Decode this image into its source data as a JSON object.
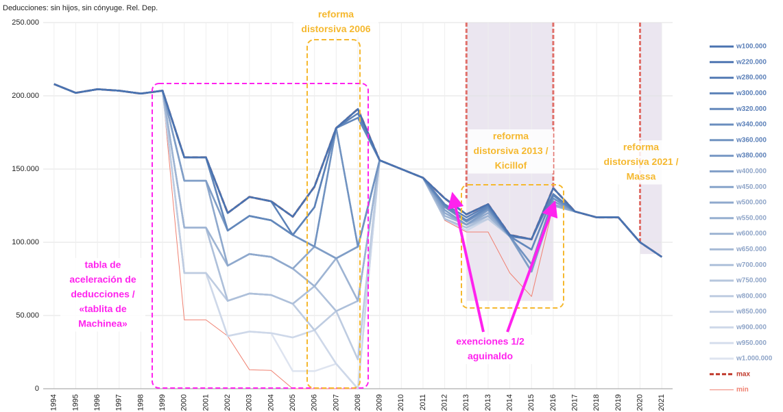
{
  "chart_data": {
    "type": "line",
    "title": "Deducciones: sin hijos, sin cónyuge. Rel. Dep.",
    "categories": [
      "1994",
      "1995",
      "1996",
      "1997",
      "1998",
      "1999",
      "2000",
      "2001",
      "2002",
      "2003",
      "2004",
      "2005",
      "2006",
      "2007",
      "2008",
      "2009",
      "2010",
      "2011",
      "2012",
      "2013",
      "2013",
      "2014",
      "2015",
      "2016",
      "2017",
      "2018",
      "2019",
      "2020",
      "2021"
    ],
    "ylim": [
      0,
      250000
    ],
    "yticks": [
      0,
      {
        "value": 50000,
        "label": "50.000"
      },
      {
        "value": 100000,
        "label": "100.000"
      },
      {
        "value": 150000,
        "label": "150.000"
      },
      {
        "value": 200000,
        "label": "200.000"
      },
      {
        "value": 250000,
        "label": "250.000"
      }
    ],
    "grid": true,
    "legend": "right",
    "series": [
      {
        "name": "w100.000",
        "color": "#4a73b0",
        "values": [
          208000,
          202000,
          204500,
          203500,
          201500,
          203500,
          158000,
          158000,
          120000,
          131000,
          128000,
          117500,
          138000,
          178000,
          191000,
          156000,
          150000,
          144000,
          130000,
          119000,
          126000,
          105000,
          102000,
          137000,
          121000,
          117000,
          117000,
          100000,
          90000
        ]
      },
      {
        "name": "w220.000",
        "color": "#4e76b2",
        "values": [
          208000,
          202000,
          204500,
          203500,
          201500,
          203500,
          158000,
          158000,
          120000,
          131000,
          128000,
          117500,
          138000,
          178000,
          191000,
          156000,
          150000,
          144000,
          130000,
          119000,
          126000,
          105000,
          102000,
          137000,
          121000,
          117000,
          117000,
          100000,
          90000
        ]
      },
      {
        "name": "w280.000",
        "color": "#557cb5",
        "values": [
          208000,
          202000,
          204500,
          203500,
          201500,
          203500,
          158000,
          158000,
          120000,
          131000,
          128000,
          117500,
          138000,
          178000,
          191000,
          156000,
          150000,
          144000,
          130000,
          119000,
          126000,
          105000,
          102000,
          137000,
          121000,
          117000,
          117000,
          100000,
          90000
        ]
      },
      {
        "name": "w300.000",
        "color": "#5c82b8",
        "values": [
          208000,
          202000,
          204500,
          203500,
          201500,
          203500,
          158000,
          158000,
          120000,
          131000,
          128000,
          105000,
          124000,
          178000,
          188000,
          156000,
          150000,
          144000,
          126000,
          117000,
          125000,
          104000,
          102000,
          133000,
          121000,
          117000,
          117000,
          100000,
          90000
        ]
      },
      {
        "name": "w320.000",
        "color": "#6388bb",
        "values": [
          208000,
          202000,
          204500,
          203500,
          201500,
          203500,
          158000,
          158000,
          108000,
          118000,
          115000,
          105000,
          124000,
          178000,
          185000,
          156000,
          150000,
          144000,
          125000,
          115000,
          124000,
          104000,
          95000,
          132000,
          121000,
          117000,
          117000,
          100000,
          90000
        ]
      },
      {
        "name": "w340.000",
        "color": "#6a8dbe",
        "values": [
          208000,
          202000,
          204500,
          203500,
          201500,
          203500,
          158000,
          158000,
          108000,
          118000,
          115000,
          105000,
          124000,
          178000,
          185000,
          156000,
          150000,
          144000,
          125000,
          115000,
          124000,
          104000,
          95000,
          132000,
          121000,
          117000,
          117000,
          100000,
          90000
        ]
      },
      {
        "name": "w360.000",
        "color": "#7193c1",
        "values": [
          208000,
          202000,
          204500,
          203500,
          201500,
          203500,
          158000,
          158000,
          108000,
          118000,
          115000,
          105000,
          97000,
          178000,
          97000,
          156000,
          150000,
          144000,
          124000,
          114000,
          123000,
          104000,
          85000,
          130000,
          121000,
          117000,
          117000,
          100000,
          90000
        ]
      },
      {
        "name": "w380.000",
        "color": "#7898c4",
        "values": [
          208000,
          202000,
          204500,
          203500,
          201500,
          203500,
          158000,
          158000,
          108000,
          118000,
          115000,
          105000,
          97000,
          178000,
          97000,
          156000,
          150000,
          144000,
          124000,
          114000,
          123000,
          104000,
          85000,
          130000,
          121000,
          117000,
          117000,
          100000,
          90000
        ]
      },
      {
        "name": "w400.000",
        "color": "#809ec7",
        "values": [
          208000,
          202000,
          204500,
          203500,
          201500,
          203500,
          142000,
          142000,
          108000,
          118000,
          115000,
          105000,
          97000,
          89000,
          97000,
          156000,
          150000,
          144000,
          122000,
          112000,
          122000,
          104000,
          80000,
          128000,
          121000,
          117000,
          117000,
          100000,
          90000
        ]
      },
      {
        "name": "w450.000",
        "color": "#87a4ca",
        "values": [
          208000,
          202000,
          204500,
          203500,
          201500,
          203500,
          142000,
          142000,
          108000,
          118000,
          115000,
          105000,
          97000,
          89000,
          97000,
          156000,
          150000,
          144000,
          122000,
          112000,
          122000,
          104000,
          80000,
          128000,
          121000,
          117000,
          117000,
          100000,
          90000
        ]
      },
      {
        "name": "w500.000",
        "color": "#8fa9cd",
        "values": [
          208000,
          202000,
          204500,
          203500,
          201500,
          203500,
          142000,
          142000,
          84000,
          92000,
          90000,
          82000,
          97000,
          89000,
          97000,
          156000,
          150000,
          144000,
          120000,
          112000,
          120000,
          104000,
          80000,
          126000,
          121000,
          117000,
          117000,
          100000,
          90000
        ]
      },
      {
        "name": "w550.000",
        "color": "#96afd0",
        "values": [
          208000,
          202000,
          204500,
          203500,
          201500,
          203500,
          142000,
          142000,
          84000,
          92000,
          90000,
          82000,
          97000,
          89000,
          97000,
          156000,
          150000,
          144000,
          120000,
          112000,
          120000,
          104000,
          80000,
          126000,
          121000,
          117000,
          117000,
          100000,
          90000
        ]
      },
      {
        "name": "w600.000",
        "color": "#9eb4d3",
        "values": [
          208000,
          202000,
          204500,
          203500,
          201500,
          203500,
          110000,
          110000,
          84000,
          92000,
          90000,
          82000,
          70000,
          89000,
          60000,
          156000,
          150000,
          144000,
          118000,
          112000,
          118000,
          104000,
          80000,
          125000,
          121000,
          117000,
          117000,
          100000,
          90000
        ]
      },
      {
        "name": "w650.000",
        "color": "#a6bad6",
        "values": [
          208000,
          202000,
          204500,
          203500,
          201500,
          203500,
          110000,
          110000,
          84000,
          92000,
          90000,
          82000,
          70000,
          89000,
          60000,
          156000,
          150000,
          144000,
          118000,
          112000,
          118000,
          104000,
          80000,
          125000,
          121000,
          117000,
          117000,
          100000,
          90000
        ]
      },
      {
        "name": "w700.000",
        "color": "#aec0da",
        "values": [
          208000,
          202000,
          204500,
          203500,
          201500,
          203500,
          110000,
          110000,
          60000,
          65000,
          64000,
          58000,
          70000,
          53000,
          60000,
          156000,
          150000,
          144000,
          116000,
          110000,
          118000,
          104000,
          80000,
          125000,
          121000,
          117000,
          117000,
          100000,
          90000
        ]
      },
      {
        "name": "w750.000",
        "color": "#b6c6dd",
        "values": [
          208000,
          202000,
          204500,
          203500,
          201500,
          203500,
          110000,
          110000,
          60000,
          65000,
          64000,
          58000,
          70000,
          53000,
          60000,
          156000,
          150000,
          144000,
          116000,
          110000,
          118000,
          104000,
          80000,
          125000,
          121000,
          117000,
          117000,
          100000,
          90000
        ]
      },
      {
        "name": "w800.000",
        "color": "#becce1",
        "values": [
          208000,
          202000,
          204500,
          203500,
          201500,
          203500,
          79000,
          79000,
          60000,
          65000,
          64000,
          58000,
          40000,
          53000,
          20000,
          156000,
          150000,
          144000,
          116000,
          110000,
          116000,
          104000,
          80000,
          125000,
          121000,
          117000,
          117000,
          100000,
          90000
        ]
      },
      {
        "name": "w850.000",
        "color": "#c6d2e5",
        "values": [
          208000,
          202000,
          204500,
          203500,
          201500,
          203500,
          79000,
          79000,
          60000,
          65000,
          64000,
          58000,
          40000,
          53000,
          20000,
          156000,
          150000,
          144000,
          116000,
          110000,
          116000,
          104000,
          80000,
          125000,
          121000,
          117000,
          117000,
          100000,
          90000
        ]
      },
      {
        "name": "w900.000",
        "color": "#ced8e9",
        "values": [
          208000,
          202000,
          204500,
          203500,
          201500,
          203500,
          79000,
          79000,
          36000,
          39000,
          38000,
          35000,
          40000,
          17000,
          0,
          156000,
          150000,
          144000,
          116000,
          108000,
          116000,
          104000,
          80000,
          125000,
          121000,
          117000,
          117000,
          100000,
          90000
        ]
      },
      {
        "name": "w950.000",
        "color": "#d6deed",
        "values": [
          208000,
          202000,
          204500,
          203500,
          201500,
          203500,
          79000,
          79000,
          36000,
          39000,
          38000,
          35000,
          40000,
          17000,
          0,
          156000,
          150000,
          144000,
          116000,
          108000,
          116000,
          104000,
          80000,
          125000,
          121000,
          117000,
          117000,
          100000,
          90000
        ]
      },
      {
        "name": "w1.000.000",
        "color": "#dee4f0",
        "values": [
          208000,
          202000,
          204500,
          203500,
          201500,
          203500,
          79000,
          79000,
          36000,
          39000,
          38000,
          12000,
          12000,
          17000,
          0,
          156000,
          150000,
          144000,
          116000,
          108000,
          116000,
          104000,
          80000,
          125000,
          121000,
          117000,
          117000,
          100000,
          90000
        ]
      },
      {
        "name": "max",
        "color": "#c0392b",
        "dashed": true,
        "values": [
          208000,
          202000,
          204500,
          203500,
          201500,
          203500,
          158000,
          158000,
          120000,
          131000,
          128000,
          117500,
          138000,
          178000,
          191000,
          156000,
          150000,
          144000,
          130000,
          119000,
          126000,
          105000,
          102000,
          137000,
          121000,
          117000,
          117000,
          100000,
          90000
        ]
      },
      {
        "name": "min",
        "color": "#f08070",
        "values": [
          208000,
          202000,
          204500,
          203500,
          201500,
          203500,
          47000,
          47000,
          36000,
          13000,
          12500,
          0,
          0,
          0,
          0,
          156000,
          150000,
          144000,
          115000,
          107000,
          107000,
          79000,
          63000,
          125000,
          121000,
          117000,
          117000,
          100000,
          90000
        ]
      }
    ],
    "annotations": [
      {
        "color": "#f5b82e",
        "lines": [
          "reforma",
          "distorsiva 2006"
        ]
      },
      {
        "color": "#f5b82e",
        "lines": [
          "reforma",
          "distorsiva 2013 /",
          "Kicillof"
        ]
      },
      {
        "color": "#f5b82e",
        "lines": [
          "reforma",
          "distorsiva 2021 /",
          "Massa"
        ]
      },
      {
        "color": "#ff22ee",
        "lines": [
          "tabla de",
          "aceleración de",
          "deducciones /",
          "«tablita de",
          "Machinea»"
        ]
      },
      {
        "color": "#ff22ee",
        "lines": [
          "exenciones 1/2",
          "aguinaldo"
        ]
      }
    ]
  }
}
